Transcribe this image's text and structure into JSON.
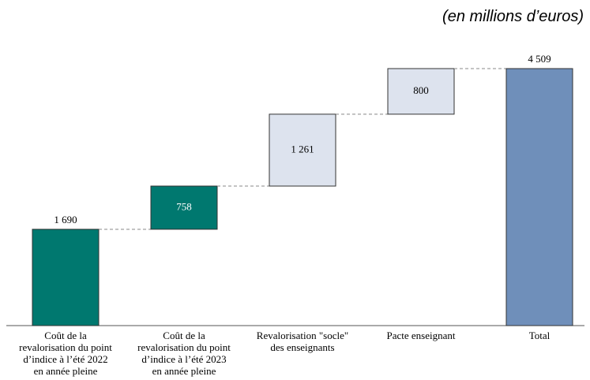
{
  "chart_data": {
    "type": "waterfall",
    "subtitle": "(en millions d’euros)",
    "categories": [
      "Coût de la revalorisation du point d’indice à l’été 2022 en année pleine",
      "Coût de la revalorisation du point d’indice à l’été 2023 en année pleine",
      "Revalorisation \"socle\" des enseignants",
      "Pacte enseignant",
      "Total"
    ],
    "values": [
      1690,
      758,
      1261,
      800,
      4509
    ],
    "value_labels": [
      "1 690",
      "758",
      "1 261",
      "800",
      "4 509"
    ],
    "colors": [
      "#00786f",
      "#00786f",
      "#dde3ee",
      "#dde3ee",
      "#6f8fba"
    ]
  }
}
